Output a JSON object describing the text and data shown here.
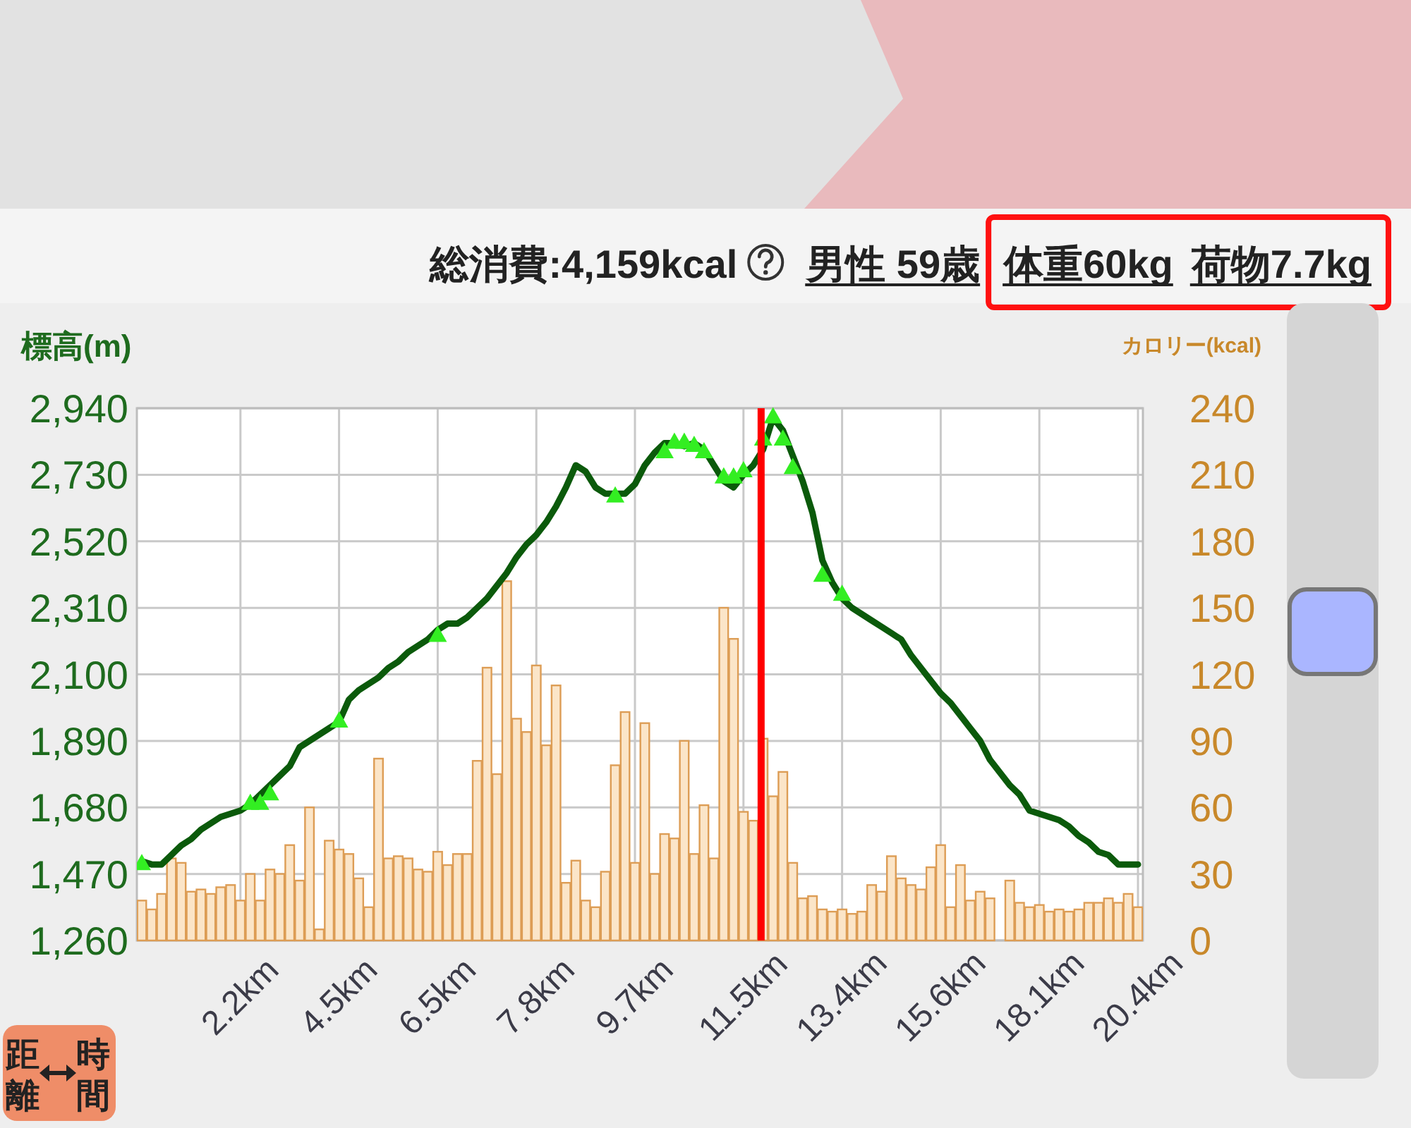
{
  "chart_data": {
    "type": "line",
    "ylabel": "標高(m)",
    "y2label": "カロリー(kcal)",
    "categories": [
      null,
      null,
      null,
      null,
      null,
      null,
      null,
      null,
      null,
      null,
      "2.2km",
      null,
      null,
      null,
      null,
      null,
      null,
      null,
      null,
      null,
      "4.5km",
      null,
      null,
      null,
      null,
      null,
      null,
      null,
      null,
      null,
      "6.5km",
      null,
      null,
      null,
      null,
      null,
      null,
      null,
      null,
      null,
      "7.8km",
      null,
      null,
      null,
      null,
      null,
      null,
      null,
      null,
      null,
      "9.7km",
      null,
      null,
      null,
      null,
      null,
      null,
      null,
      null,
      null,
      null,
      "11.5km",
      null,
      null,
      null,
      null,
      null,
      null,
      null,
      null,
      null,
      "13.4km",
      null,
      null,
      null,
      null,
      null,
      null,
      null,
      null,
      null,
      "15.6km",
      null,
      null,
      null,
      null,
      null,
      null,
      null,
      null,
      null,
      "18.1km",
      null,
      null,
      null,
      null,
      null,
      null,
      null,
      null,
      null,
      "20.4km"
    ],
    "ylim": [
      1260,
      2940
    ],
    "yticks": [
      {
        "value": 1260,
        "label": "1,260"
      },
      {
        "value": 1470,
        "label": "1,470"
      },
      {
        "value": 1680,
        "label": "1,680"
      },
      {
        "value": 1890,
        "label": "1,890"
      },
      {
        "value": 2100,
        "label": "2,100"
      },
      {
        "value": 2310,
        "label": "2,310"
      },
      {
        "value": 2520,
        "label": "2,520"
      },
      {
        "value": 2730,
        "label": "2,730"
      },
      {
        "value": 2940,
        "label": "2,940"
      }
    ],
    "y2lim": [
      0,
      240
    ],
    "y2ticks": [
      0,
      30,
      60,
      90,
      120,
      150,
      180,
      210,
      240
    ],
    "grid": true,
    "series": [
      {
        "type": "bar",
        "axis": "y2",
        "color": "#fbe5c8",
        "values": [
          18,
          14,
          21,
          37,
          35,
          22,
          23,
          21,
          24,
          25,
          18,
          30,
          18,
          32,
          30,
          43,
          27,
          60,
          5,
          45,
          41,
          39,
          28,
          15,
          82,
          37,
          38,
          37,
          32,
          31,
          40,
          34,
          39,
          39,
          81,
          123,
          75,
          162,
          100,
          94,
          124,
          88,
          115,
          26,
          36,
          18,
          15,
          31,
          79,
          103,
          35,
          98,
          30,
          48,
          46,
          90,
          39,
          61,
          37,
          150,
          136,
          58,
          54,
          91,
          65,
          76,
          35,
          19,
          20,
          14,
          13,
          14,
          12,
          13,
          25,
          22,
          38,
          28,
          25,
          23,
          33,
          43,
          15,
          34,
          18,
          22,
          19,
          null,
          27,
          17,
          15,
          16,
          13,
          14,
          13,
          14,
          17,
          17,
          19,
          17,
          21,
          15
        ]
      },
      {
        "color": "#0b5a0b",
        "values": [
          1510,
          1500,
          1500,
          1530,
          1560,
          1580,
          1610,
          1630,
          1650,
          1660,
          1670,
          1690,
          1720,
          1750,
          1780,
          1810,
          1870,
          1890,
          1910,
          1930,
          1950,
          2020,
          2050,
          2070,
          2090,
          2120,
          2140,
          2170,
          2190,
          2210,
          2240,
          2260,
          2260,
          2280,
          2310,
          2340,
          2380,
          2420,
          2470,
          2510,
          2540,
          2580,
          2630,
          2690,
          2760,
          2740,
          2690,
          2670,
          2670,
          2670,
          2700,
          2760,
          2800,
          2830,
          2830,
          2820,
          2830,
          2810,
          2760,
          2710,
          2690,
          2730,
          2760,
          2810,
          2910,
          2870,
          2790,
          2710,
          2610,
          2460,
          2390,
          2340,
          2310,
          2290,
          2270,
          2250,
          2230,
          2210,
          2160,
          2120,
          2080,
          2040,
          2010,
          1970,
          1930,
          1890,
          1830,
          1790,
          1750,
          1720,
          1670,
          1660,
          1650,
          1640,
          1620,
          1590,
          1570,
          1540,
          1530,
          1500,
          1500,
          1500
        ]
      },
      {
        "type": "scatter",
        "marker": "triangle",
        "color": "#33ee22",
        "values": [
          1500,
          null,
          null,
          null,
          null,
          null,
          null,
          null,
          null,
          null,
          null,
          1690,
          1690,
          1720,
          null,
          null,
          null,
          null,
          null,
          null,
          1950,
          null,
          null,
          null,
          null,
          null,
          null,
          null,
          null,
          null,
          2220,
          null,
          null,
          null,
          null,
          null,
          null,
          null,
          null,
          null,
          null,
          null,
          null,
          null,
          null,
          null,
          null,
          null,
          2660,
          null,
          null,
          null,
          null,
          2800,
          2830,
          2830,
          2820,
          2800,
          null,
          2720,
          2720,
          2740,
          null,
          2840,
          2910,
          2840,
          2750,
          null,
          null,
          2410,
          null,
          2350,
          null,
          null,
          null,
          null,
          null,
          null,
          null,
          null,
          null,
          null,
          null,
          null,
          null,
          null,
          null,
          null,
          null,
          null,
          null,
          null,
          null,
          null,
          null,
          null,
          null,
          null,
          null,
          null,
          null,
          null
        ]
      }
    ],
    "annotations": [
      "総消費:4,159kcal",
      "男性 59歳",
      "体重60kg",
      "荷物7.7kg",
      "距離",
      "時間"
    ]
  }
}
